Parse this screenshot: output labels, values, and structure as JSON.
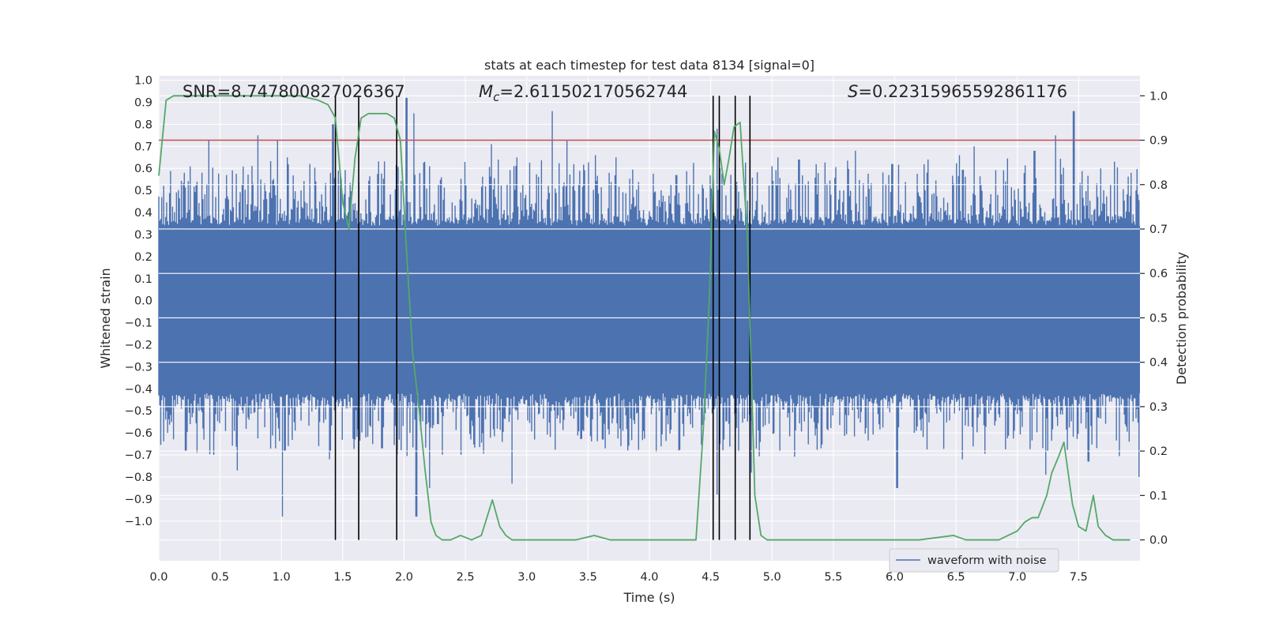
{
  "chart_data": {
    "type": "line",
    "title": "stats at each timestep for test data 8134 [signal=0]",
    "xlabel": "Time (s)",
    "ylabel": "Whitened strain",
    "y2label": "Detection probability",
    "xlim": [
      0.0,
      8.0
    ],
    "ylim": [
      -1.18,
      1.02
    ],
    "y2lim": [
      -0.047,
      1.045
    ],
    "grid": true,
    "x_ticks": [
      "0.0",
      "0.5",
      "1.0",
      "1.5",
      "2.0",
      "2.5",
      "3.0",
      "3.5",
      "4.0",
      "4.5",
      "5.0",
      "5.5",
      "6.0",
      "6.5",
      "7.0",
      "7.5"
    ],
    "y_ticks": [
      "1.0",
      "0.9",
      "0.8",
      "0.7",
      "0.6",
      "0.5",
      "0.4",
      "0.3",
      "0.2",
      "0.1",
      "0.0",
      "−0.1",
      "−0.2",
      "−0.3",
      "−0.4",
      "−0.5",
      "−0.6",
      "−0.7",
      "−0.8",
      "−0.9",
      "−1.0"
    ],
    "y2_ticks": [
      "1.0",
      "0.9",
      "0.8",
      "0.7",
      "0.6",
      "0.5",
      "0.4",
      "0.3",
      "0.2",
      "0.1",
      "0.0"
    ],
    "annotations": {
      "snr": "SNR=8.747800827026367",
      "mc_symbol": "M",
      "mc_sub": "c",
      "mc_value": "=2.611502170562744",
      "s_symbol": "S",
      "s_value": "=0.22315965592861176"
    },
    "legend": {
      "label": "waveform with noise",
      "position": "lower-right"
    },
    "threshold": {
      "value": 0.9,
      "axis": "y2",
      "color": "#c44e52"
    },
    "event_markers_x": [
      1.44,
      1.63,
      1.94,
      4.52,
      4.57,
      4.7,
      4.82
    ],
    "waveform": {
      "name": "waveform with noise",
      "color": "#4c72b0",
      "n_samples": 1000,
      "core_upper": 0.34,
      "core_lower": -0.42,
      "peaks_upper": [
        [
          0.21,
          0.58
        ],
        [
          0.35,
          0.58
        ],
        [
          0.41,
          0.73
        ],
        [
          0.55,
          0.57
        ],
        [
          0.81,
          0.75
        ],
        [
          0.97,
          0.73
        ],
        [
          1.05,
          0.65
        ],
        [
          1.23,
          0.62
        ],
        [
          1.42,
          0.8
        ],
        [
          1.48,
          0.57
        ],
        [
          2.02,
          0.92
        ],
        [
          2.08,
          0.85
        ],
        [
          2.17,
          0.63
        ],
        [
          2.71,
          0.71
        ],
        [
          2.77,
          0.64
        ],
        [
          2.92,
          0.65
        ],
        [
          3.21,
          0.86
        ],
        [
          3.33,
          0.73
        ],
        [
          3.56,
          0.66
        ],
        [
          3.73,
          0.65
        ],
        [
          4.22,
          0.57
        ],
        [
          4.55,
          0.78
        ],
        [
          5.05,
          0.65
        ],
        [
          5.22,
          0.64
        ],
        [
          5.68,
          0.68
        ],
        [
          5.98,
          0.62
        ],
        [
          6.27,
          0.64
        ],
        [
          6.53,
          0.66
        ],
        [
          6.65,
          0.7
        ],
        [
          7.14,
          0.68
        ],
        [
          7.31,
          0.75
        ],
        [
          7.46,
          0.86
        ],
        [
          7.68,
          0.6
        ],
        [
          7.93,
          0.58
        ]
      ],
      "peaks_lower": [
        [
          0.07,
          -0.6
        ],
        [
          0.22,
          -0.68
        ],
        [
          0.45,
          -0.7
        ],
        [
          0.64,
          -0.77
        ],
        [
          0.95,
          -0.67
        ],
        [
          1.01,
          -0.98
        ],
        [
          1.39,
          -0.72
        ],
        [
          1.6,
          -0.63
        ],
        [
          1.82,
          -0.67
        ],
        [
          2.1,
          -0.98
        ],
        [
          2.21,
          -0.85
        ],
        [
          2.88,
          -0.83
        ],
        [
          3.62,
          -0.63
        ],
        [
          4.55,
          -0.88
        ],
        [
          4.83,
          -0.78
        ],
        [
          5.4,
          -0.67
        ],
        [
          6.02,
          -0.85
        ],
        [
          6.55,
          -0.72
        ],
        [
          7.23,
          -0.79
        ],
        [
          7.58,
          -0.73
        ],
        [
          7.99,
          -0.8
        ]
      ]
    },
    "detection_probability": {
      "color": "#55a868",
      "x": [
        0.0,
        0.06,
        0.12,
        0.3,
        0.6,
        0.9,
        1.15,
        1.3,
        1.38,
        1.44,
        1.5,
        1.55,
        1.6,
        1.65,
        1.71,
        1.78,
        1.86,
        1.92,
        1.97,
        2.02,
        2.07,
        2.12,
        2.17,
        2.22,
        2.26,
        2.31,
        2.38,
        2.46,
        2.55,
        2.63,
        2.72,
        2.78,
        2.83,
        2.88,
        2.95,
        3.05,
        3.2,
        3.4,
        3.55,
        3.68,
        3.8,
        3.95,
        4.1,
        4.25,
        4.38,
        4.44,
        4.49,
        4.53,
        4.57,
        4.61,
        4.65,
        4.69,
        4.74,
        4.8,
        4.86,
        4.91,
        4.96,
        5.03,
        5.1,
        5.3,
        5.55,
        5.85,
        6.2,
        6.48,
        6.58,
        6.62,
        6.72,
        6.85,
        7.0,
        7.06,
        7.12,
        7.17,
        7.24,
        7.28,
        7.34,
        7.38,
        7.45,
        7.5,
        7.56,
        7.62,
        7.66,
        7.72,
        7.78,
        7.86,
        7.92
      ],
      "y": [
        0.82,
        0.99,
        1.0,
        1.0,
        1.0,
        1.0,
        1.0,
        0.99,
        0.98,
        0.95,
        0.76,
        0.7,
        0.86,
        0.95,
        0.96,
        0.96,
        0.96,
        0.95,
        0.9,
        0.65,
        0.42,
        0.3,
        0.16,
        0.04,
        0.01,
        0.0,
        0.0,
        0.01,
        0.0,
        0.01,
        0.09,
        0.03,
        0.01,
        0.0,
        0.0,
        0.0,
        0.0,
        0.0,
        0.01,
        0.0,
        0.0,
        0.0,
        0.0,
        0.0,
        0.0,
        0.25,
        0.55,
        0.92,
        0.88,
        0.8,
        0.86,
        0.93,
        0.94,
        0.68,
        0.1,
        0.01,
        0.0,
        0.0,
        0.0,
        0.0,
        0.0,
        0.0,
        0.0,
        0.01,
        0.0,
        0.0,
        0.0,
        0.0,
        0.02,
        0.04,
        0.05,
        0.05,
        0.1,
        0.15,
        0.19,
        0.22,
        0.08,
        0.03,
        0.02,
        0.1,
        0.03,
        0.01,
        0.0,
        0.0,
        0.0
      ]
    }
  }
}
